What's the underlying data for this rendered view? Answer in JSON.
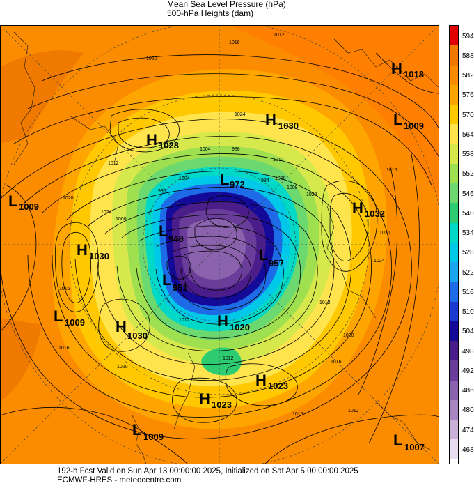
{
  "legend": {
    "line1": "Mean Sea Level Pressure (hPa)",
    "line2": "500-hPa Heights (dam)"
  },
  "colorbar": {
    "labels": [
      "594",
      "588",
      "582",
      "576",
      "570",
      "564",
      "558",
      "552",
      "546",
      "540",
      "534",
      "528",
      "522",
      "516",
      "510",
      "504",
      "498",
      "492",
      "486",
      "480",
      "474",
      "468"
    ],
    "colors": [
      "#e00000",
      "#f07a00",
      "#fb8c00",
      "#ffa500",
      "#ffc800",
      "#ffe44d",
      "#d6e84c",
      "#9ee050",
      "#6cd870",
      "#2ecc71",
      "#00d8c8",
      "#00c8e8",
      "#1aa6f0",
      "#1e6be8",
      "#1a3ad0",
      "#140a9a",
      "#4b1d8a",
      "#6a3d9a",
      "#8a62ad",
      "#a985c2",
      "#c9b0d9",
      "#e8ddf0"
    ]
  },
  "centers": [
    {
      "type": "H",
      "value": "1018"
    },
    {
      "type": "L",
      "value": "1009"
    },
    {
      "type": "H",
      "value": "1030"
    },
    {
      "type": "H",
      "value": "1028"
    },
    {
      "type": "L",
      "value": "1009"
    },
    {
      "type": "H",
      "value": "1032"
    },
    {
      "type": "L",
      "value": "972"
    },
    {
      "type": "L",
      "value": "948"
    },
    {
      "type": "L",
      "value": "957"
    },
    {
      "type": "H",
      "value": "1030"
    },
    {
      "type": "L",
      "value": "951"
    },
    {
      "type": "L",
      "value": "1009"
    },
    {
      "type": "H",
      "value": "1030"
    },
    {
      "type": "H",
      "value": "1020"
    },
    {
      "type": "H",
      "value": "1023"
    },
    {
      "type": "H",
      "value": "1023"
    },
    {
      "type": "L",
      "value": "1009"
    },
    {
      "type": "L",
      "value": "1007"
    }
  ],
  "isobar_labels": [
    "1012",
    "1016",
    "1020",
    "1024",
    "1004",
    "988",
    "1012",
    "1008",
    "1012",
    "996",
    "1000",
    "1016",
    "1020",
    "1024",
    "1012",
    "1016",
    "1020",
    "1012",
    "1016",
    "1020",
    "1012",
    "1012",
    "1016",
    "1016",
    "1020",
    "1024",
    "1028",
    "1008",
    "984",
    "1004"
  ],
  "footer": {
    "line1": "192-h Fcst Valid on Sun Apr 13 00:00:00 2025, Initialized on Sat Apr  5 00:00:00 2025",
    "line2": "ECMWF-HRES  -  meteocentre.com"
  }
}
